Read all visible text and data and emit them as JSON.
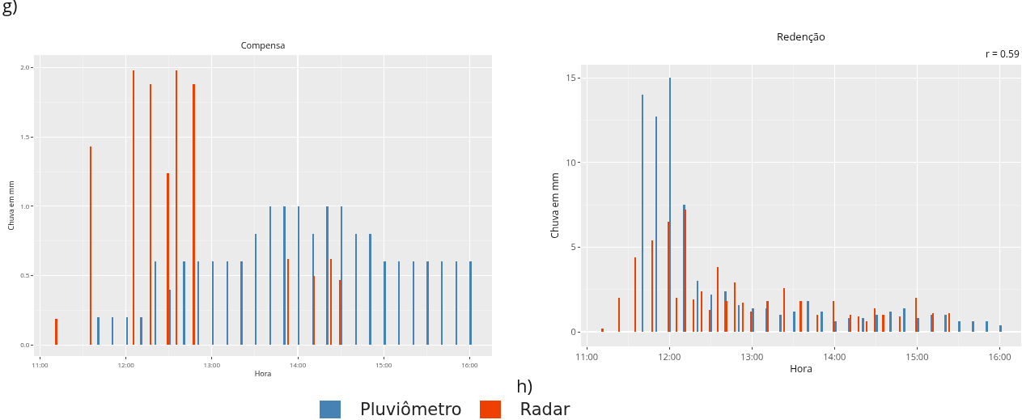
{
  "chart_data": [
    {
      "type": "bar",
      "title": "Compensa",
      "xlabel": "Hora",
      "ylabel": "Chuva em mm",
      "annotations": [
        "g)"
      ],
      "xlim": [
        10.93,
        16.26
      ],
      "xticks": [
        {
          "value": 11,
          "label": "11:00"
        },
        {
          "value": 12,
          "label": "12:00"
        },
        {
          "value": 13,
          "label": "13:00"
        },
        {
          "value": 14,
          "label": "14:00"
        },
        {
          "value": 15,
          "label": "15:00"
        },
        {
          "value": 16,
          "label": "16:00"
        }
      ],
      "ylim": [
        -0.08,
        2.09
      ],
      "yticks": [
        {
          "value": 0,
          "label": "0.0"
        },
        {
          "value": 0.5,
          "label": "0.5"
        },
        {
          "value": 1,
          "label": "1.0"
        },
        {
          "value": 1.5,
          "label": "1.5"
        },
        {
          "value": 2,
          "label": "2.0"
        }
      ],
      "grid": true,
      "legend": "bottom",
      "series": [
        {
          "name": "Pluviômetro",
          "color": "#4682b4",
          "x": [
            11.667,
            11.833,
            12,
            12.167,
            12.333,
            12.5,
            12.667,
            12.833,
            13,
            13.167,
            13.333,
            13.5,
            13.667,
            13.833,
            14,
            14.167,
            14.333,
            14.5,
            14.667,
            14.833,
            15,
            15.167,
            15.333,
            15.5,
            15.667,
            15.833,
            16
          ],
          "values": [
            0.2,
            0.2,
            0.2,
            0.2,
            0.6,
            0.4,
            0.6,
            0.6,
            0.6,
            0.6,
            0.6,
            0.8,
            1.0,
            1.0,
            1.0,
            0.8,
            1.0,
            1.0,
            0.8,
            0.8,
            0.6,
            0.6,
            0.6,
            0.6,
            0.6,
            0.6,
            0.6
          ]
        },
        {
          "name": "Radar",
          "color": "#ee4000",
          "x": [
            11.2,
            11.6,
            12.1,
            12.3,
            12.5,
            12.6,
            12.8,
            13.9,
            14.2,
            14.4,
            14.5
          ],
          "values": [
            0.19,
            1.43,
            1.98,
            1.88,
            1.24,
            1.98,
            1.88,
            0.62,
            0.5,
            0.62,
            0.47
          ]
        }
      ]
    },
    {
      "type": "bar",
      "title": "Redenção",
      "xlabel": "Hora",
      "ylabel": "Chuva em mm",
      "annotations": [
        "h)",
        "r = 0.59"
      ],
      "xlim": [
        10.93,
        16.26
      ],
      "xticks": [
        {
          "value": 11,
          "label": "11:00"
        },
        {
          "value": 12,
          "label": "12:00"
        },
        {
          "value": 13,
          "label": "13:00"
        },
        {
          "value": 14,
          "label": "14:00"
        },
        {
          "value": 15,
          "label": "15:00"
        },
        {
          "value": 16,
          "label": "16:00"
        }
      ],
      "ylim": [
        -0.86,
        15.77
      ],
      "yticks": [
        0,
        5,
        10,
        15
      ],
      "grid": true,
      "series": [
        {
          "color": "#4682b4",
          "x": [
            11.667,
            11.833,
            12,
            12.167,
            12.333,
            12.5,
            12.667,
            12.833,
            13,
            13.167,
            13.333,
            13.5,
            13.667,
            13.833,
            14,
            14.167,
            14.333,
            14.5,
            14.667,
            14.833,
            15,
            15.167,
            15.333,
            15.5,
            15.667,
            15.833,
            16
          ],
          "values": [
            14.0,
            12.7,
            15.0,
            7.5,
            3.0,
            2.2,
            2.4,
            1.6,
            1.4,
            1.4,
            1.0,
            1.2,
            1.8,
            1.2,
            0.6,
            0.8,
            0.8,
            1.0,
            1.2,
            1.4,
            0.8,
            1.0,
            1.0,
            0.6,
            0.6,
            0.6,
            0.4
          ]
        },
        {
          "color": "#ee4000",
          "x": [
            11.2,
            11.4,
            11.6,
            11.8,
            12,
            12.1,
            12.2,
            12.3,
            12.4,
            12.5,
            12.6,
            12.7,
            12.8,
            12.9,
            13,
            13.2,
            13.4,
            13.6,
            13.8,
            14,
            14.2,
            14.3,
            14.4,
            14.5,
            14.6,
            14.8,
            15,
            15.2,
            15.4
          ],
          "values": [
            0.2,
            2.0,
            4.4,
            5.4,
            6.5,
            2.0,
            7.2,
            1.9,
            2.4,
            1.3,
            3.8,
            1.8,
            2.9,
            1.7,
            1.2,
            1.8,
            2.6,
            1.8,
            1.0,
            1.8,
            1.0,
            0.9,
            0.6,
            1.4,
            1.0,
            0.9,
            2.0,
            1.1,
            1.1
          ]
        }
      ]
    }
  ]
}
